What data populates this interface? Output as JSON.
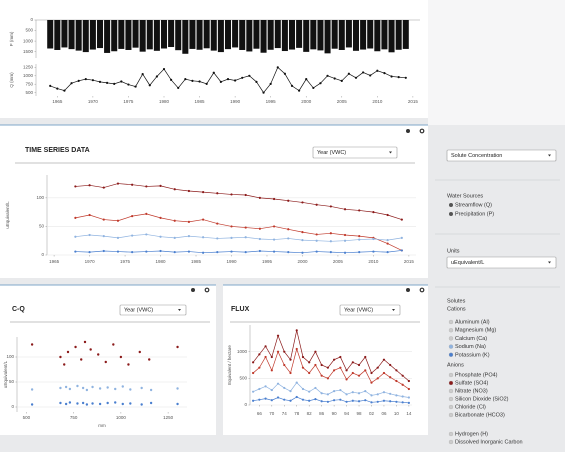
{
  "chart_data": [
    {
      "type": "bar",
      "y_label": "P (mm)",
      "color": "#111111",
      "y_reversed": true,
      "x": [
        1964,
        1965,
        1966,
        1967,
        1968,
        1969,
        1970,
        1971,
        1972,
        1973,
        1974,
        1975,
        1976,
        1977,
        1978,
        1979,
        1980,
        1981,
        1982,
        1983,
        1984,
        1985,
        1986,
        1987,
        1988,
        1989,
        1990,
        1991,
        1992,
        1993,
        1994,
        1995,
        1996,
        1997,
        1998,
        1999,
        2000,
        2001,
        2002,
        2003,
        2004,
        2005,
        2006,
        2007,
        2008,
        2009,
        2010,
        2011,
        2012,
        2013,
        2014
      ],
      "values": [
        1350,
        1420,
        1300,
        1380,
        1450,
        1520,
        1400,
        1330,
        1560,
        1480,
        1370,
        1420,
        1310,
        1500,
        1390,
        1460,
        1350,
        1280,
        1430,
        1600,
        1370,
        1410,
        1340,
        1450,
        1520,
        1380,
        1300,
        1420,
        1490,
        1360,
        1550,
        1410,
        1330,
        1470,
        1400,
        1320,
        1510,
        1390,
        1440,
        1580,
        1360,
        1420,
        1300,
        1460,
        1400,
        1350,
        1480,
        1390,
        1530,
        1410,
        1370
      ],
      "xlim": [
        1962,
        2016
      ],
      "ylim": [
        0,
        1800
      ],
      "yticks": [
        0,
        500,
        1000,
        1500
      ]
    },
    {
      "type": "line",
      "y_label": "Q (mm)",
      "color": "#111111",
      "x": [
        1964,
        1965,
        1966,
        1967,
        1968,
        1969,
        1970,
        1971,
        1972,
        1973,
        1974,
        1975,
        1976,
        1977,
        1978,
        1979,
        1980,
        1981,
        1982,
        1983,
        1984,
        1985,
        1986,
        1987,
        1988,
        1989,
        1990,
        1991,
        1992,
        1993,
        1994,
        1995,
        1996,
        1997,
        1998,
        1999,
        2000,
        2001,
        2002,
        2003,
        2004,
        2005,
        2006,
        2007,
        2008,
        2009,
        2010,
        2011,
        2012,
        2013,
        2014
      ],
      "values": [
        700,
        620,
        560,
        780,
        850,
        900,
        870,
        820,
        790,
        760,
        830,
        740,
        680,
        1050,
        720,
        980,
        1200,
        880,
        640,
        900,
        850,
        830,
        760,
        1090,
        820,
        900,
        860,
        940,
        1000,
        820,
        500,
        760,
        1250,
        1060,
        700,
        560,
        900,
        640,
        780,
        1000,
        920,
        850,
        1060,
        940,
        1100,
        1010,
        1150,
        1080,
        980,
        960,
        940
      ],
      "xlim": [
        1962,
        2016
      ],
      "ylim": [
        400,
        1350
      ],
      "yticks": [
        500,
        750,
        1000,
        1250
      ],
      "xticks": [
        1965,
        1970,
        1975,
        1980,
        1985,
        1990,
        1995,
        2000,
        2005,
        2010,
        2015
      ]
    },
    {
      "type": "line",
      "y_label": "uEquivalent/L",
      "grid": true,
      "x": [
        1968,
        1970,
        1972,
        1974,
        1976,
        1978,
        1980,
        1982,
        1984,
        1986,
        1988,
        1990,
        1992,
        1994,
        1996,
        1998,
        2000,
        2002,
        2004,
        2006,
        2008,
        2010,
        2012,
        2014
      ],
      "series": [
        {
          "color": "#8b1a1a",
          "values": [
            120,
            122,
            118,
            125,
            123,
            120,
            121,
            115,
            112,
            110,
            108,
            106,
            105,
            100,
            98,
            95,
            92,
            88,
            85,
            80,
            78,
            75,
            70,
            62
          ]
        },
        {
          "color": "#c0392b",
          "values": [
            65,
            70,
            62,
            60,
            68,
            72,
            65,
            60,
            58,
            62,
            55,
            50,
            48,
            46,
            50,
            45,
            40,
            36,
            38,
            35,
            33,
            30,
            20,
            8
          ]
        },
        {
          "color": "#8fb3e0",
          "values": [
            32,
            35,
            33,
            30,
            34,
            36,
            32,
            30,
            33,
            31,
            29,
            30,
            31,
            28,
            27,
            29,
            26,
            25,
            24,
            25,
            27,
            28,
            26,
            30
          ]
        },
        {
          "color": "#4a7fcf",
          "values": [
            6,
            5,
            7,
            6,
            5,
            6,
            7,
            5,
            6,
            4,
            5,
            6,
            5,
            7,
            6,
            5,
            4,
            6,
            5,
            4,
            5,
            6,
            5,
            8
          ]
        }
      ],
      "xlim": [
        1964,
        2016
      ],
      "ylim": [
        0,
        140
      ],
      "yticks": [
        0,
        50,
        100
      ],
      "xticks": [
        1965,
        1970,
        1975,
        1980,
        1985,
        1990,
        1995,
        2000,
        2005,
        2010,
        2015
      ]
    },
    {
      "type": "scatter",
      "y_label": "uEquivalent/L",
      "x_label": "mm",
      "grid": true,
      "series": [
        {
          "color": "#8b1a1a",
          "x": [
            530,
            680,
            700,
            720,
            760,
            790,
            810,
            840,
            880,
            920,
            960,
            1000,
            1040,
            1100,
            1150,
            1300
          ],
          "values": [
            125,
            100,
            85,
            110,
            120,
            95,
            130,
            115,
            105,
            90,
            125,
            100,
            85,
            110,
            95,
            120
          ]
        },
        {
          "color": "#8fb3e0",
          "x": [
            530,
            680,
            710,
            730,
            770,
            800,
            820,
            850,
            890,
            930,
            970,
            1010,
            1050,
            1110,
            1160,
            1300
          ],
          "values": [
            35,
            38,
            40,
            36,
            42,
            38,
            34,
            40,
            37,
            39,
            36,
            41,
            35,
            38,
            34,
            37
          ]
        },
        {
          "color": "#4a7fcf",
          "x": [
            530,
            680,
            710,
            730,
            770,
            800,
            820,
            850,
            890,
            930,
            970,
            1010,
            1050,
            1110,
            1160,
            1300
          ],
          "values": [
            5,
            8,
            6,
            9,
            7,
            8,
            5,
            7,
            6,
            8,
            9,
            6,
            7,
            5,
            8,
            6
          ]
        }
      ],
      "xlim": [
        450,
        1350
      ],
      "ylim": [
        -10,
        140
      ],
      "yticks": [
        0,
        50,
        100
      ],
      "xticks": [
        500,
        750,
        1000,
        1250
      ]
    },
    {
      "type": "line",
      "y_label": "Equivalent / hectare",
      "grid": true,
      "x": [
        1964,
        1966,
        1968,
        1970,
        1972,
        1974,
        1976,
        1978,
        1980,
        1982,
        1984,
        1986,
        1988,
        1990,
        1992,
        1994,
        1996,
        1998,
        2000,
        2002,
        2004,
        2006,
        2008,
        2010,
        2012,
        2014
      ],
      "series": [
        {
          "color": "#8b1a1a",
          "values": [
            800,
            950,
            1100,
            900,
            1300,
            1000,
            850,
            1400,
            900,
            800,
            1000,
            750,
            700,
            850,
            900,
            650,
            800,
            750,
            900,
            600,
            700,
            850,
            750,
            650,
            550,
            450
          ]
        },
        {
          "color": "#c0392b",
          "values": [
            600,
            700,
            900,
            650,
            1000,
            750,
            600,
            1050,
            700,
            600,
            750,
            550,
            500,
            650,
            700,
            480,
            600,
            550,
            650,
            420,
            500,
            600,
            520,
            450,
            380,
            300
          ]
        },
        {
          "color": "#8fb3e0",
          "values": [
            250,
            300,
            350,
            280,
            400,
            320,
            260,
            420,
            300,
            250,
            320,
            220,
            200,
            260,
            280,
            200,
            240,
            220,
            260,
            180,
            200,
            240,
            210,
            180,
            160,
            140
          ]
        },
        {
          "color": "#4a7fcf",
          "values": [
            80,
            100,
            120,
            90,
            140,
            100,
            80,
            150,
            100,
            80,
            110,
            70,
            60,
            90,
            100,
            60,
            80,
            70,
            90,
            50,
            60,
            80,
            70,
            60,
            50,
            40
          ]
        }
      ],
      "xlim": [
        1963,
        2015
      ],
      "ylim": [
        0,
        1500
      ],
      "yticks": [
        0,
        500,
        1000
      ],
      "xticks": [
        {
          "value": 1966,
          "label": "66"
        },
        {
          "value": 1970,
          "label": "70"
        },
        {
          "value": 1974,
          "label": "74"
        },
        {
          "value": 1978,
          "label": "78"
        },
        {
          "value": 1982,
          "label": "82"
        },
        {
          "value": 1986,
          "label": "86"
        },
        {
          "value": 1990,
          "label": "90"
        },
        {
          "value": 1994,
          "label": "94"
        },
        {
          "value": 1998,
          "label": "98"
        },
        {
          "value": 2002,
          "label": "02"
        },
        {
          "value": 2006,
          "label": "06"
        },
        {
          "value": 2010,
          "label": "10"
        },
        {
          "value": 2014,
          "label": "14"
        }
      ]
    }
  ],
  "panels": {
    "time_series_title": "TIME SERIES DATA",
    "time_series_select": "Year (VWC)",
    "cq_title": "C-Q",
    "cq_select": "Year (VWC)",
    "flux_title": "FLUX",
    "flux_select": "Year (VWC)"
  },
  "sidebar": {
    "mode_select": "Solute Concentration",
    "water_sources_title": "Water Sources",
    "water_sources": [
      "Streamflow (Q)",
      "Precipitation (P)"
    ],
    "units_title": "Units",
    "units_select": "uEquivalent/L",
    "solutes_title": "Solutes",
    "cations_title": "Cations",
    "cations": [
      "Aluminum (Al)",
      "Magnesium (Mg)",
      "Calcium (Ca)",
      "Sodium (Na)",
      "Potassium (K)"
    ],
    "anions_title": "Anions",
    "anions": [
      "Phosphate (PO4)",
      "Sulfate (SO4)",
      "Nitrate (NO3)",
      "Silicon Dioxide (SiO2)",
      "Chloride (Cl)",
      "Bicarbonate (HCO3)"
    ],
    "other": [
      "Hydrogen (H)",
      "Dissolved Inorganic Carbon"
    ]
  }
}
